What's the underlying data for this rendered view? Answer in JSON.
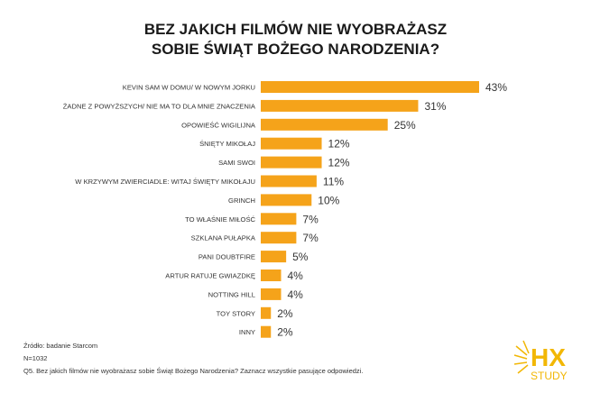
{
  "title_lines": [
    "BEZ JAKICH FILMÓW NIE WYOBRAŻASZ",
    "SOBIE ŚWIĄT BOŻEGO NARODZENIA?"
  ],
  "chart_data": {
    "type": "bar",
    "orientation": "horizontal",
    "title": "BEZ JAKICH FILMÓW NIE WYOBRAŻASZ SOBIE ŚWIĄT BOŻEGO NARODZENIA?",
    "categories": [
      "KEVIN SAM W DOMU/ W NOWYM JORKU",
      "ŻADNE Z POWYŻSZYCH/ NIE MA TO DLA MNIE ZNACZENIA",
      "OPOWIEŚĆ WIGILIJNA",
      "ŚNIĘTY MIKOŁAJ",
      "SAMI SWOI",
      "W KRZYWYM ZWIERCIADLE: WITAJ ŚWIĘTY MIKOŁAJU",
      "GRINCH",
      "TO WŁAŚNIE MIŁOŚĆ",
      "SZKLANA PUŁAPKA",
      "PANI DOUBTFIRE",
      "ARTUR RATUJE GWIAZDKĘ",
      "NOTTING HILL",
      "TOY STORY",
      "INNY"
    ],
    "values": [
      43,
      31,
      25,
      12,
      12,
      11,
      10,
      7,
      7,
      5,
      4,
      4,
      2,
      2
    ],
    "value_labels": [
      "43%",
      "31%",
      "25%",
      "12%",
      "12%",
      "11%",
      "10%",
      "7%",
      "7%",
      "5%",
      "4%",
      "4%",
      "2%",
      "2%"
    ],
    "unit": "%",
    "xlim": [
      0,
      45
    ],
    "grid": false,
    "bar_color": "#f5a31a"
  },
  "footer": {
    "source": "Źródło: badanie Starcom",
    "n": "N=1032",
    "question": "Q5. Bez jakich filmów nie wyobrażasz sobie Świąt Bożego Narodzenia? Zaznacz wszystkie pasujące odpowiedzi."
  },
  "logo": {
    "top": "HX",
    "bottom": "STUDY",
    "color": "#f2b705"
  }
}
